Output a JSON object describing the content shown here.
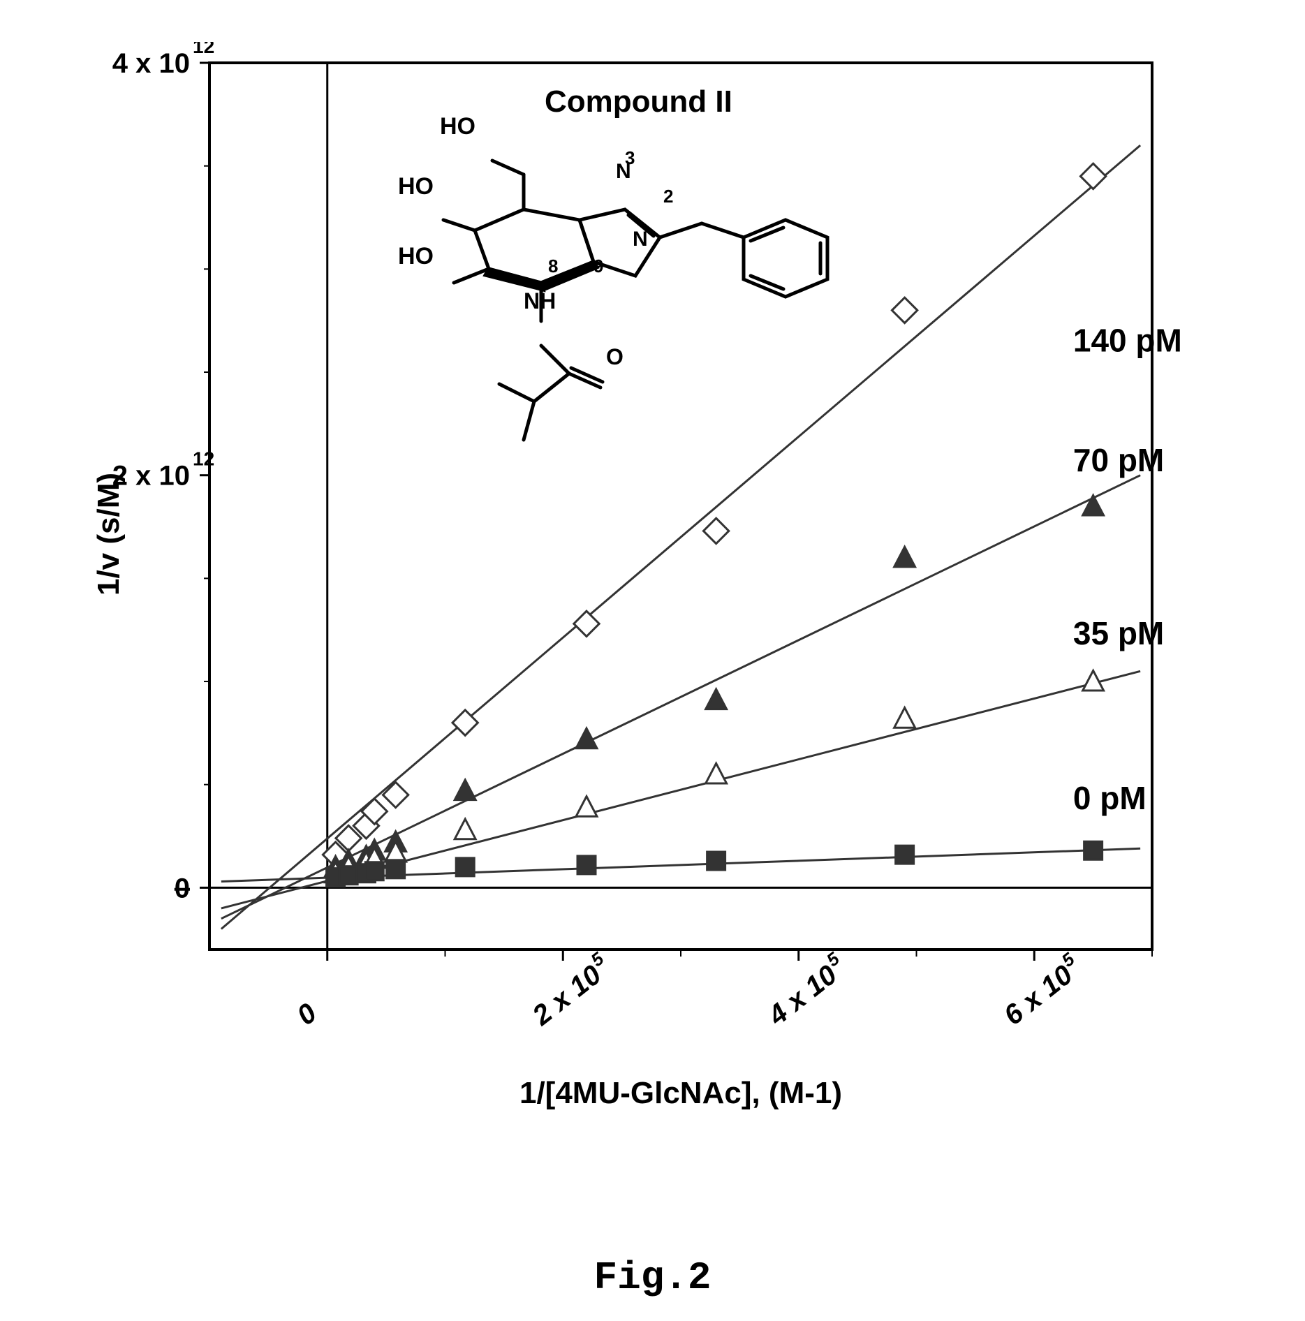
{
  "figure_label": "Fig.2",
  "chart": {
    "type": "line-scatter",
    "title_inset": "Compound II",
    "xlabel": "1/[4MU-GlcNAc], (M-1)",
    "ylabel": "1/v (s/M)",
    "ytick_labels": [
      "0",
      "2 x 10",
      "4 x 10"
    ],
    "ytick_sup": "12",
    "ytick_positions": [
      0,
      2,
      4
    ],
    "ylim": [
      -0.3,
      4.0
    ],
    "xtick_labels": [
      "0",
      "2 x 10",
      "4 x 10",
      "6 x 10"
    ],
    "xtick_sup": "5",
    "xtick_positions": [
      0,
      2,
      4,
      6
    ],
    "xlim": [
      -1.0,
      7.0
    ],
    "background_color": "#ffffff",
    "axis_color": "#000000",
    "line_color": "#333333",
    "line_width": 3,
    "font_color": "#000000",
    "tick_fontsize": 40,
    "label_fontsize": 44,
    "series_label_fontsize": 46,
    "series": [
      {
        "label": "140 pM",
        "marker": "open-diamond",
        "marker_fill": "#ffffff",
        "marker_stroke": "#333333",
        "marker_size": 28,
        "points_x": [
          0.07,
          0.18,
          0.33,
          0.4,
          0.58,
          1.17,
          2.2,
          3.3,
          4.9,
          6.5
        ],
        "points_y": [
          0.16,
          0.24,
          0.3,
          0.37,
          0.45,
          0.8,
          1.28,
          1.73,
          2.8,
          3.45
        ],
        "line_from": [
          -0.9,
          -0.2
        ],
        "line_to": [
          6.9,
          3.6
        ],
        "label_xy": [
          7.1,
          2.6
        ]
      },
      {
        "label": "70 pM",
        "marker": "filled-triangle",
        "marker_fill": "#333333",
        "marker_stroke": "#333333",
        "marker_size": 26,
        "points_x": [
          0.07,
          0.18,
          0.33,
          0.4,
          0.58,
          1.17,
          2.2,
          3.3,
          4.9,
          6.5
        ],
        "points_y": [
          0.1,
          0.13,
          0.15,
          0.18,
          0.22,
          0.47,
          0.72,
          0.91,
          1.6,
          1.85
        ],
        "line_from": [
          -0.9,
          -0.15
        ],
        "line_to": [
          6.9,
          2.0
        ],
        "label_xy": [
          7.1,
          2.02
        ]
      },
      {
        "label": "35 pM",
        "marker": "open-triangle",
        "marker_fill": "#ffffff",
        "marker_stroke": "#333333",
        "marker_size": 26,
        "points_x": [
          0.07,
          0.18,
          0.33,
          0.4,
          0.58,
          1.17,
          2.2,
          3.3,
          4.9,
          6.5
        ],
        "points_x_adj": [
          0.07,
          0.18,
          0.33,
          0.4,
          0.58,
          1.17,
          2.2,
          3.3,
          4.9,
          6.5
        ],
        "points_y": [
          0.07,
          0.1,
          0.12,
          0.14,
          0.17,
          0.28,
          0.39,
          0.55,
          0.82,
          1.0
        ],
        "line_from": [
          -0.9,
          -0.1
        ],
        "line_to": [
          6.9,
          1.05
        ],
        "label_xy": [
          7.1,
          1.18
        ]
      },
      {
        "label": "0 pM",
        "marker": "filled-square",
        "marker_fill": "#333333",
        "marker_stroke": "#333333",
        "marker_size": 26,
        "points_x": [
          0.07,
          0.18,
          0.33,
          0.4,
          0.58,
          1.17,
          2.2,
          3.3,
          4.9,
          6.5
        ],
        "points_y": [
          0.05,
          0.06,
          0.07,
          0.08,
          0.09,
          0.1,
          0.11,
          0.13,
          0.16,
          0.18
        ],
        "line_from": [
          -0.9,
          0.03
        ],
        "line_to": [
          6.9,
          0.19
        ],
        "label_xy": [
          7.1,
          0.38
        ]
      }
    ],
    "structure": {
      "labels": {
        "HO_top": "HO",
        "HO_mid": "HO",
        "HO_low": "HO",
        "NH": "NH",
        "N": "N",
        "O": "O",
        "n2": "2",
        "n3": "3",
        "n8": "8",
        "n9": "9"
      }
    }
  }
}
